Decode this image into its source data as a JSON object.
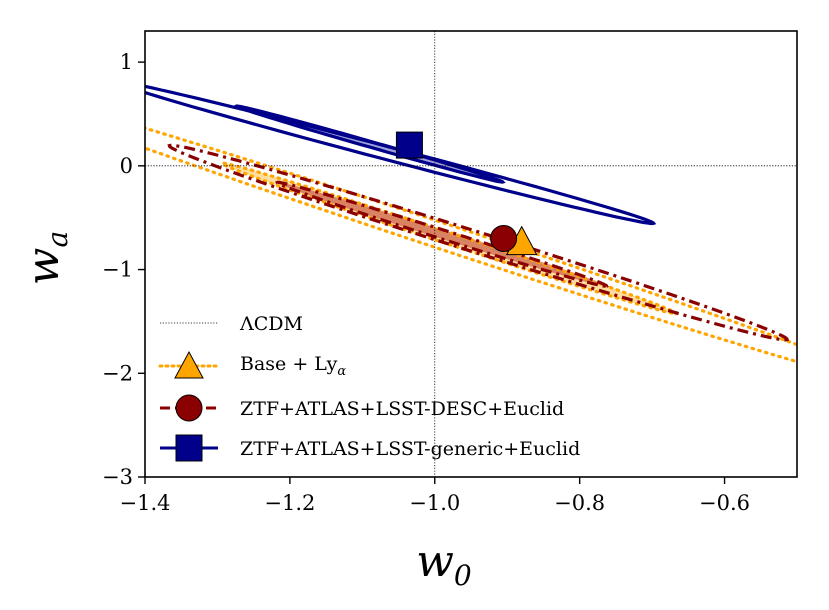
{
  "chart_data": {
    "type": "scatter",
    "xlabel": "w",
    "xlabel_sub": "0",
    "ylabel": "w",
    "ylabel_sub": "a",
    "xlim": [
      -1.4,
      -0.5
    ],
    "ylim": [
      -3,
      1.3
    ],
    "xticks": [
      -1.4,
      -1.2,
      -1.0,
      -0.8,
      -0.6
    ],
    "xtick_labels": [
      "−1.4",
      "−1.2",
      "−1.0",
      "−0.8",
      "−0.6"
    ],
    "yticks": [
      -3,
      -2,
      -1,
      0,
      1
    ],
    "ytick_labels": [
      "−3",
      "−2",
      "−1",
      "0",
      "1"
    ],
    "reference_lines": {
      "x": -1.0,
      "y": 0.0
    },
    "grid": false,
    "legend_position": "bottom-left",
    "legend": [
      {
        "key": "lcdm",
        "label": "ΛCDM",
        "sub": ""
      },
      {
        "key": "base",
        "label": "Base + Ly",
        "sub": "α"
      },
      {
        "key": "desc",
        "label": "ZTF+ATLAS+LSST-DESC+Euclid",
        "sub": ""
      },
      {
        "key": "generic",
        "label": "ZTF+ATLAS+LSST-generic+Euclid",
        "sub": ""
      }
    ],
    "series": [
      {
        "name": "Base + Lyα",
        "color": "#ffa500",
        "marker": "triangle",
        "line": "dotted",
        "best_fit": [
          -0.88,
          -0.75
        ],
        "contours": [
          {
            "level": "1sigma",
            "center": [
              -0.98,
              -0.7
            ],
            "semi_major": 0.79,
            "semi_minor": 0.023,
            "slope": -2.32,
            "filled": true
          },
          {
            "level": "2sigma",
            "center": [
              -0.98,
              -0.7
            ],
            "semi_major": 1.56,
            "semi_minor": 0.052,
            "slope": -2.32,
            "filled": false
          }
        ]
      },
      {
        "name": "ZTF+ATLAS+LSST-DESC+Euclid",
        "color": "#8b0000",
        "marker": "circle",
        "line": "dashdot",
        "best_fit": [
          -0.905,
          -0.7
        ],
        "contours": [
          {
            "level": "1sigma",
            "center": [
              -0.99,
              -0.66
            ],
            "semi_major": 0.55,
            "semi_minor": 0.019,
            "slope": -2.21,
            "filled": true
          },
          {
            "level": "2sigma",
            "center": [
              -0.94,
              -0.74
            ],
            "semi_major": 1.03,
            "semi_minor": 0.043,
            "slope": -2.21,
            "filled": false
          }
        ]
      },
      {
        "name": "ZTF+ATLAS+LSST-generic+Euclid",
        "color": "#00008b",
        "marker": "square",
        "line": "solid",
        "best_fit": [
          -1.035,
          0.2
        ],
        "contours": [
          {
            "level": "1sigma",
            "center": [
              -1.09,
              0.21
            ],
            "semi_major": 0.41,
            "semi_minor": 0.013,
            "slope": -2.0,
            "filled": true
          },
          {
            "level": "2sigma",
            "center": [
              -1.07,
              0.13
            ],
            "semi_major": 0.78,
            "semi_minor": 0.031,
            "slope": -1.85,
            "filled": false
          }
        ]
      }
    ]
  }
}
